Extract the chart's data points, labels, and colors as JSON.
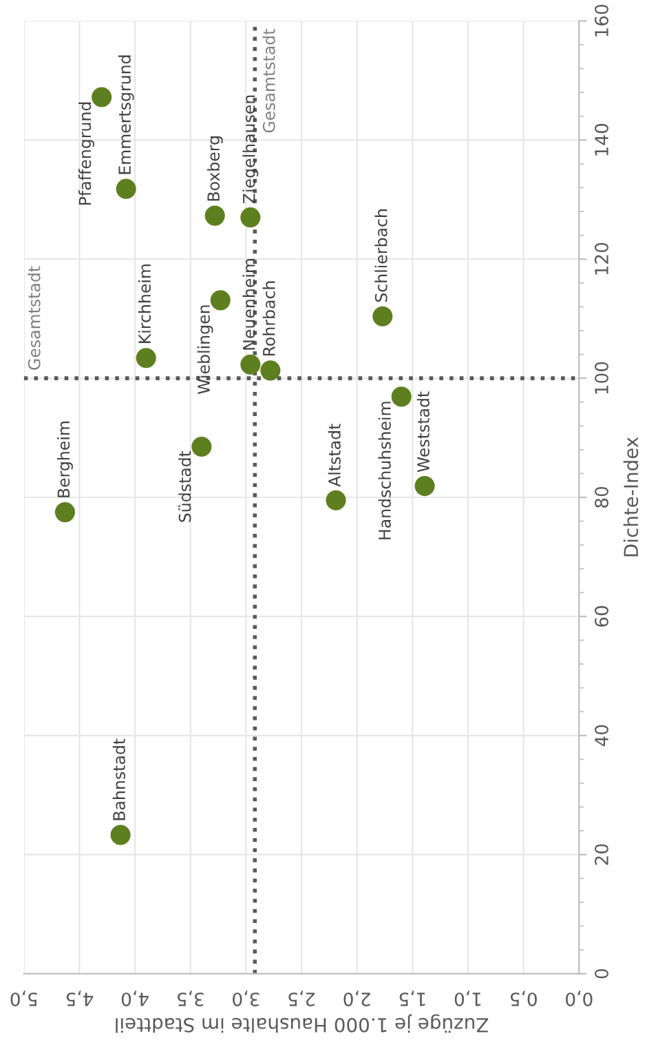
{
  "chart_data": {
    "type": "scatter",
    "xlabel": "Zuzüge je 1.000 Haushalte im Stadtteil",
    "ylabel": "Dichte-Index",
    "series": [
      {
        "color": "#5e7f1f",
        "x": [
          4.3,
          4.08,
          3.28,
          2.96,
          3.9,
          3.23,
          2.96,
          2.78,
          1.77,
          1.6,
          4.63,
          3.4,
          2.19,
          1.39,
          4.13
        ],
        "values": [
          147.2,
          131.8,
          127.3,
          127.0,
          103.4,
          113.1,
          102.3,
          101.3,
          110.4,
          96.9,
          77.5,
          88.5,
          79.5,
          81.9,
          23.3
        ]
      }
    ],
    "annotations": [
      {
        "text": "Pfaffengrund",
        "x": 4.3,
        "y": 147.2
      },
      {
        "text": "Emmertsgrund",
        "x": 4.08,
        "y": 131.8
      },
      {
        "text": "Boxberg",
        "x": 3.28,
        "y": 127.3
      },
      {
        "text": "Ziegelhausen",
        "x": 2.96,
        "y": 127.0
      },
      {
        "text": "Kirchheim",
        "x": 3.9,
        "y": 103.4
      },
      {
        "text": "Wieblingen",
        "x": 3.23,
        "y": 113.1
      },
      {
        "text": "Neuenheim",
        "x": 2.96,
        "y": 102.3
      },
      {
        "text": "Rohrbach",
        "x": 2.78,
        "y": 101.3
      },
      {
        "text": "Schlierbach",
        "x": 1.77,
        "y": 110.4
      },
      {
        "text": "Handschuhsheim",
        "x": 1.6,
        "y": 96.9
      },
      {
        "text": "Bergheim",
        "x": 4.63,
        "y": 77.5
      },
      {
        "text": "Südstadt",
        "x": 3.4,
        "y": 88.5
      },
      {
        "text": "Altstadt",
        "x": 2.19,
        "y": 79.5
      },
      {
        "text": "Weststadt",
        "x": 1.39,
        "y": 81.9
      },
      {
        "text": "Bahnstadt",
        "x": 4.13,
        "y": 23.3
      }
    ],
    "xlim": [
      5,
      0
    ],
    "xticks": [
      {
        "value": 5,
        "label": "5,0"
      },
      {
        "value": 4.5,
        "label": "4,5"
      },
      {
        "value": 4,
        "label": "4,0"
      },
      {
        "value": 3.5,
        "label": "3,5"
      },
      {
        "value": 3,
        "label": "3,0"
      },
      {
        "value": 2.5,
        "label": "2,5"
      },
      {
        "value": 2,
        "label": "2,0"
      },
      {
        "value": 1.5,
        "label": "1,5"
      },
      {
        "value": 1,
        "label": "1,0"
      },
      {
        "value": 0.5,
        "label": "0,5"
      },
      {
        "value": 0,
        "label": "0,0"
      }
    ],
    "ylim": [
      0,
      160
    ],
    "yticks": [
      0,
      20,
      40,
      60,
      80,
      100,
      120,
      140,
      160
    ],
    "ref_lines": [
      {
        "axis": "x",
        "value": 2.92,
        "label": "Gesamtstadt",
        "color": "#595959",
        "line_style": "dotted"
      },
      {
        "axis": "y",
        "value": 100,
        "label": "Gesamtstadt",
        "color": "#595959",
        "line_style": "dotted"
      }
    ],
    "grid": true,
    "marker": "circle"
  }
}
